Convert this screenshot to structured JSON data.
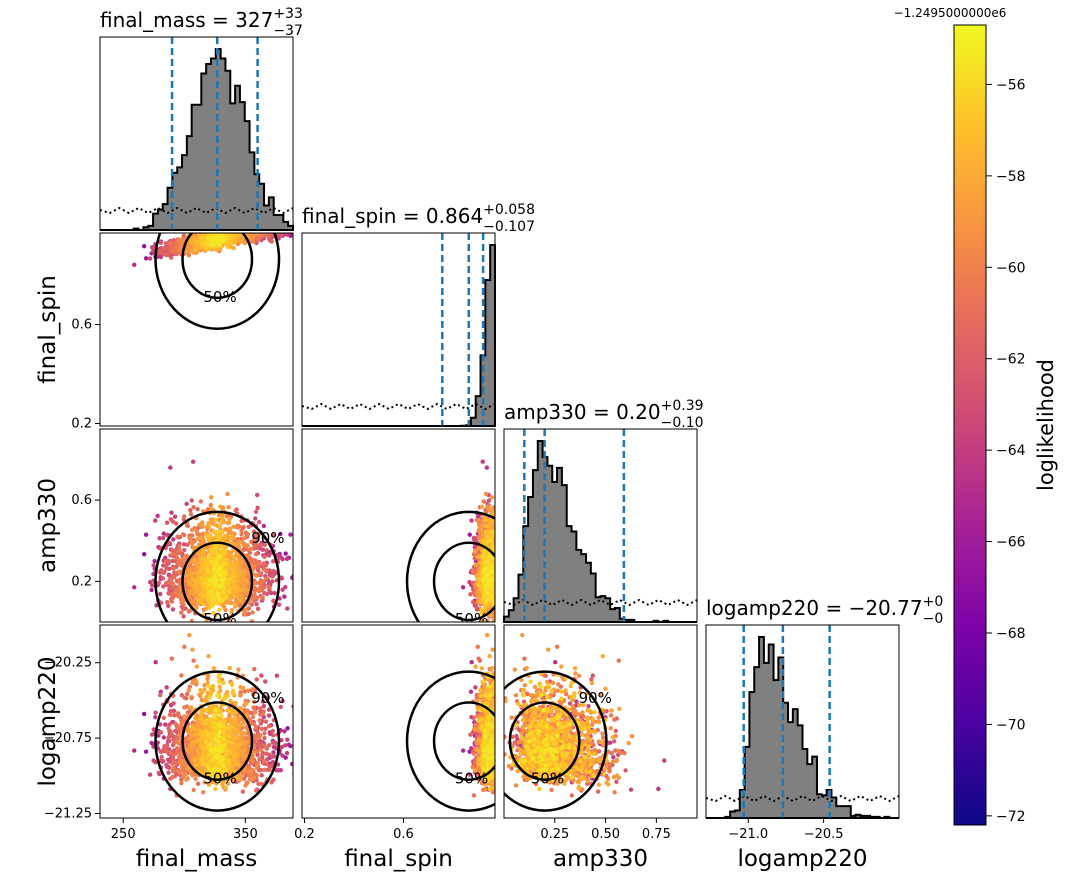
{
  "chart_data": {
    "type": "scatter",
    "kind": "corner-plot",
    "parameters": [
      {
        "name": "final_mass",
        "median": 327,
        "plus": "33",
        "minus": "37",
        "title_prefix": "final_mass = ",
        "title_value": "327",
        "range": [
          231,
          389
        ],
        "ticks": [
          250,
          350
        ],
        "tick_labels": [
          "250",
          "350"
        ],
        "interval": [
          290,
          327,
          360
        ]
      },
      {
        "name": "final_spin",
        "median": 0.864,
        "plus": "0.058",
        "minus": "0.107",
        "title_prefix": "final_spin = ",
        "title_value": "0.864",
        "range": [
          0.19,
          0.97
        ],
        "ticks": [
          0.2,
          0.6
        ],
        "tick_labels": [
          "0.2",
          "0.6"
        ],
        "interval": [
          0.757,
          0.864,
          0.922
        ]
      },
      {
        "name": "amp330",
        "median": 0.2,
        "plus": "0.39",
        "minus": "0.10",
        "title_prefix": "amp330 = ",
        "title_value": "0.20",
        "range": [
          0.0,
          0.95
        ],
        "ticks": [
          0.2,
          0.6
        ],
        "tick_labels": [
          "0.2",
          "0.6"
        ],
        "x_ticks": [
          0.25,
          0.5,
          0.75
        ],
        "x_tick_labels": [
          "0.25",
          "0.50",
          "0.75"
        ],
        "interval": [
          0.1,
          0.2,
          0.59
        ]
      },
      {
        "name": "logamp220",
        "median": -20.77,
        "plus": "0",
        "minus": "0",
        "title_prefix": "logamp220 = ",
        "title_value": "−20.77",
        "range": [
          -21.28,
          -20.0
        ],
        "ticks": [
          -20.25,
          -20.75,
          -21.25
        ],
        "tick_labels": [
          "−20.25",
          "−20.75",
          "−21.25"
        ],
        "x_ticks": [
          -21.0,
          -20.5
        ],
        "x_tick_labels": [
          "−21.0",
          "−20.5"
        ],
        "interval": [
          -21.03,
          -20.77,
          -20.46
        ]
      }
    ],
    "contour_levels": [
      "50%",
      "90%"
    ],
    "colorbar": {
      "label": "loglikelihood",
      "offset_text": "−1.2495000000e6",
      "min": -72.2,
      "max": -54.7,
      "ticks": [
        -56,
        -58,
        -60,
        -62,
        -64,
        -66,
        -68,
        -70,
        -72
      ],
      "tick_labels": [
        "−56",
        "−58",
        "−60",
        "−62",
        "−64",
        "−66",
        "−68",
        "−70",
        "−72"
      ],
      "colormap": "plasma"
    },
    "histogram_color": "#808080",
    "interval_line_color": "#1f77b4",
    "contour_color": "#000000",
    "prior_line_style": "dotted"
  }
}
